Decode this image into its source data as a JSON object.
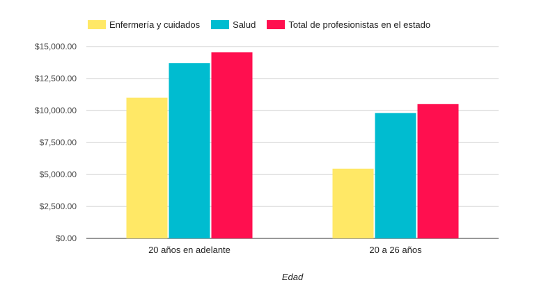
{
  "chart_data": {
    "type": "bar",
    "categories": [
      "20 años en adelante",
      "20 a 26 años"
    ],
    "series": [
      {
        "name": "Enfermería y cuidados",
        "color": "#FFE866",
        "values": [
          11000,
          5450
        ]
      },
      {
        "name": "Salud",
        "color": "#00BCD0",
        "values": [
          13700,
          9800
        ]
      },
      {
        "name": "Total de profesionistas en el estado",
        "color": "#FF0F4F",
        "values": [
          14550,
          10500
        ]
      }
    ],
    "title": "",
    "xlabel": "Edad",
    "ylabel": "",
    "ylim": [
      0,
      15000
    ],
    "yticks": [
      0,
      2500,
      5000,
      7500,
      10000,
      12500,
      15000
    ],
    "ytick_labels": [
      "$0.00",
      "$2,500.00",
      "$5,000.00",
      "$7,500.00",
      "$10,000.00",
      "$12,500.00",
      "$15,000.00"
    ],
    "grid": true,
    "legend_position": "top-left"
  }
}
